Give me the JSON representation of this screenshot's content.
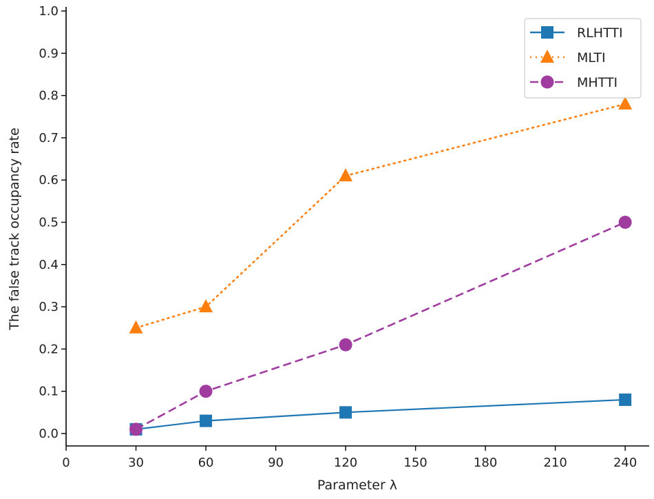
{
  "chart_data": {
    "type": "line",
    "title": "",
    "xlabel": "Parameter λ",
    "ylabel": "The false track occupancy rate",
    "x": [
      30,
      60,
      120,
      240
    ],
    "xlim": [
      0,
      250.3
    ],
    "ylim": [
      -0.03,
      1.0
    ],
    "xticks": [
      "0",
      "30",
      "60",
      "90",
      "120",
      "150",
      "180",
      "210",
      "240"
    ],
    "xtick_values": [
      0,
      30,
      60,
      90,
      120,
      150,
      180,
      210,
      240
    ],
    "yticks": [
      "0.0",
      "0.1",
      "0.2",
      "0.3",
      "0.4",
      "0.5",
      "0.6",
      "0.7",
      "0.8",
      "0.9",
      "1.0"
    ],
    "ytick_values": [
      0,
      0.1,
      0.2,
      0.3,
      0.4,
      0.5,
      0.6,
      0.7,
      0.8,
      0.9,
      1.0
    ],
    "grid": false,
    "legend_position": "top-right",
    "series": [
      {
        "name": "RLHTTI",
        "values": [
          0.01,
          0.03,
          0.05,
          0.08
        ],
        "color": "#1f77b4",
        "marker": "square",
        "linestyle": "solid"
      },
      {
        "name": "MLTI",
        "values": [
          0.25,
          0.3,
          0.61,
          0.78
        ],
        "color": "#ff7f0e",
        "marker": "triangle",
        "linestyle": "dotted"
      },
      {
        "name": "MHTTI",
        "values": [
          0.01,
          0.1,
          0.21,
          0.5
        ],
        "color": "#a03ca0",
        "marker": "circle",
        "linestyle": "dashed"
      }
    ]
  }
}
